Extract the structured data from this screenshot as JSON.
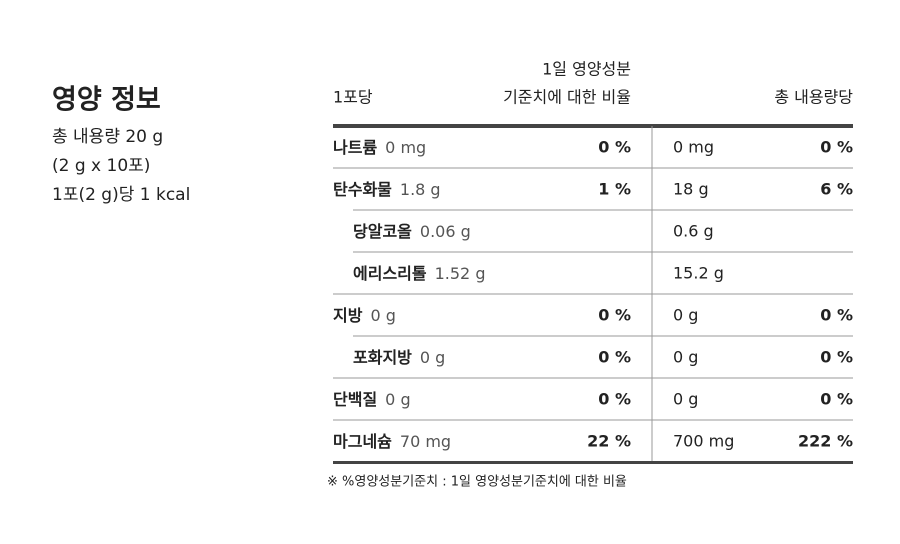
{
  "header": {
    "title": "영양 정보",
    "lines": [
      "총 내용량 20 g",
      "(2 g x 10포)",
      "1포(2 g)당 1 kcal"
    ]
  },
  "table": {
    "columns": {
      "per_serving": "1포당",
      "daily_value": [
        "1일 영양성분",
        "기준치에 대한 비율"
      ],
      "total": "총 내용량당"
    },
    "rows": [
      {
        "name": "나트륨",
        "amount": "0 mg",
        "pct": "0 %",
        "total_amount": "0 mg",
        "total_pct": "0 %"
      },
      {
        "name": "탄수화물",
        "amount": "1.8 g",
        "pct": "1 %",
        "total_amount": "18 g",
        "total_pct": "6 %"
      },
      {
        "name": "당알코올",
        "amount": "0.06 g",
        "total_amount": "0.6 g"
      },
      {
        "name": "에리스리톨",
        "amount": "1.52 g",
        "total_amount": "15.2 g"
      },
      {
        "name": "지방",
        "amount": "0 g",
        "pct": "0 %",
        "total_amount": "0 g",
        "total_pct": "0 %"
      },
      {
        "name": "포화지방",
        "amount": "0 g",
        "pct": "0 %",
        "total_amount": "0 g",
        "total_pct": "0 %"
      },
      {
        "name": "단백질",
        "amount": "0 g",
        "pct": "0 %",
        "total_amount": "0 g",
        "total_pct": "0 %"
      },
      {
        "name": "마그네슘",
        "amount": "70 mg",
        "pct": "22 %",
        "total_amount": "700 mg",
        "total_pct": "222 %"
      }
    ]
  },
  "footnote": "※ %영양성분기준치 : 1일 영양성분기준치에 대한 비율"
}
